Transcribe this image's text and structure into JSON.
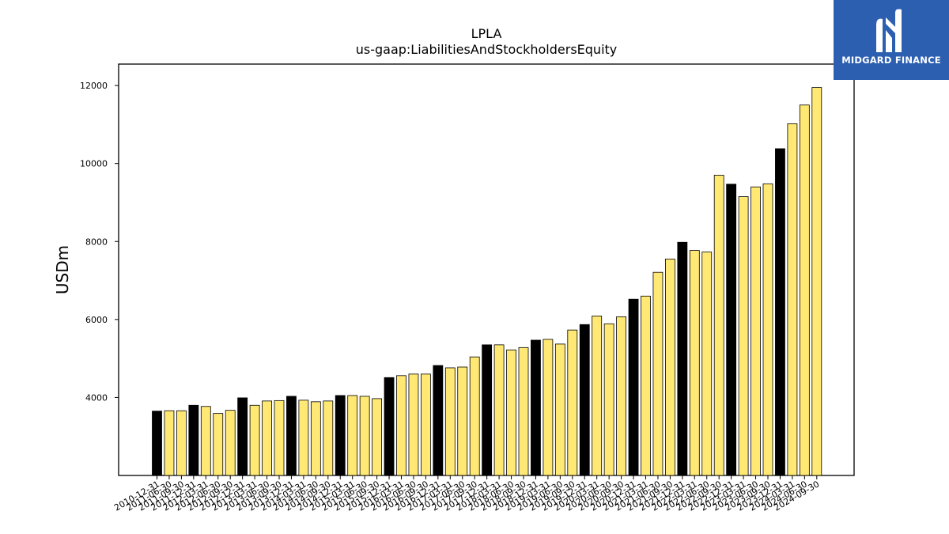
{
  "brand": {
    "name": "MIDGARD FINANCE",
    "colors": {
      "box": "#2c5fb0",
      "text": "#ffffff"
    },
    "icon": "midgard-logo-icon"
  },
  "colors": {
    "annual_bar": "#000000",
    "quarter_bar": "#ffe873",
    "bar_edge": "#000000"
  },
  "chart_data": {
    "type": "bar",
    "title": "LPLA",
    "subtitle": "us-gaap:LiabilitiesAndStockholdersEquity",
    "xlabel": "",
    "ylabel": "USDm",
    "ylim": [
      2000,
      12550
    ],
    "yticks": [
      4000,
      6000,
      8000,
      10000,
      12000
    ],
    "grid": false,
    "legend": "none",
    "categories": [
      "2010-12-31",
      "2011-06-30",
      "2011-09-30",
      "2011-12-31",
      "2012-03-31",
      "2012-06-30",
      "2012-09-30",
      "2012-12-31",
      "2013-03-31",
      "2013-06-30",
      "2013-09-30",
      "2013-12-31",
      "2014-03-31",
      "2014-06-30",
      "2014-09-30",
      "2014-12-31",
      "2015-03-31",
      "2015-06-30",
      "2015-09-30",
      "2015-12-31",
      "2016-03-31",
      "2016-06-30",
      "2016-09-30",
      "2016-12-31",
      "2017-03-31",
      "2017-06-30",
      "2017-09-30",
      "2017-12-31",
      "2018-03-31",
      "2018-06-30",
      "2018-09-30",
      "2018-12-31",
      "2019-03-31",
      "2019-06-30",
      "2019-09-30",
      "2019-12-31",
      "2020-03-31",
      "2020-06-30",
      "2020-09-30",
      "2020-12-31",
      "2021-03-31",
      "2021-06-30",
      "2021-09-30",
      "2021-12-31",
      "2022-03-31",
      "2022-06-30",
      "2022-09-30",
      "2022-12-31",
      "2023-03-31",
      "2023-06-30",
      "2023-09-30",
      "2023-12-31",
      "2024-03-31",
      "2024-06-30",
      "2024-09-30"
    ],
    "values": [
      3650,
      3660,
      3660,
      3800,
      3770,
      3590,
      3670,
      3990,
      3800,
      3910,
      3920,
      4030,
      3930,
      3890,
      3910,
      4050,
      4050,
      4030,
      3970,
      4510,
      4560,
      4600,
      4600,
      4820,
      4760,
      4780,
      5040,
      5350,
      5350,
      5220,
      5280,
      5470,
      5490,
      5370,
      5730,
      5870,
      6090,
      5890,
      6070,
      6520,
      6600,
      7210,
      7550,
      7980,
      7770,
      7730,
      9700,
      9470,
      9150,
      9400,
      9480,
      10380,
      11020,
      11500,
      11950
    ],
    "annual_flags": [
      1,
      0,
      0,
      1,
      0,
      0,
      0,
      1,
      0,
      0,
      0,
      1,
      0,
      0,
      0,
      1,
      0,
      0,
      0,
      1,
      0,
      0,
      0,
      1,
      0,
      0,
      0,
      1,
      0,
      0,
      0,
      1,
      0,
      0,
      0,
      1,
      0,
      0,
      0,
      1,
      0,
      0,
      0,
      1,
      0,
      0,
      0,
      1,
      0,
      0,
      0,
      1,
      0,
      0,
      0
    ]
  }
}
